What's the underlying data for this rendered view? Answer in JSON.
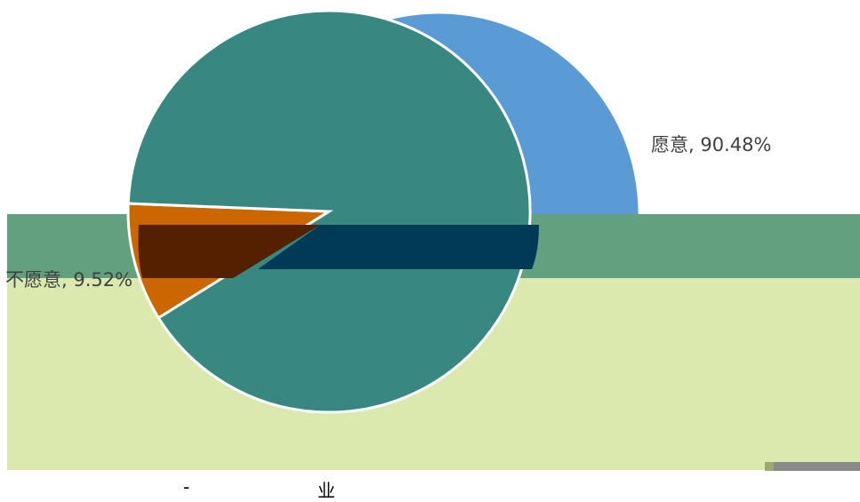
{
  "chart_data": [
    {
      "type": "pie",
      "title": "",
      "slices": [
        {
          "label": "愿意",
          "value": 90.48,
          "display": "愿意, 90.48%",
          "color": "#5b9bd5"
        },
        {
          "label": "不愿意",
          "value": 9.52,
          "display": "不愿意, 9.52%",
          "color": "#ed7d31"
        }
      ]
    },
    {
      "type": "pie",
      "title": "",
      "slices": [
        {
          "label": "不愿意",
          "value": 9.52,
          "display": "不愿意, 9.52%",
          "color": "#cc6600"
        },
        {
          "label": "愿意",
          "value": 90.48,
          "display": "",
          "color": "#388781"
        }
      ]
    }
  ],
  "colors": {
    "band_green": "#62a07f",
    "panel_bg": "#dce9ae",
    "band_brown": "#542000",
    "band_navy": "#003a57",
    "bar_gray": "#8a8a8a",
    "bar_olive": "#9aaa70"
  },
  "footer": {
    "left": "-",
    "right": "业"
  }
}
